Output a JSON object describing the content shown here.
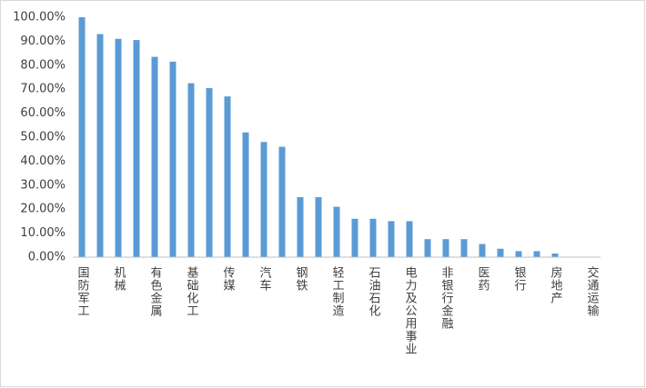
{
  "chart_data": {
    "type": "bar",
    "categories": [
      "国防军工",
      null,
      "机械",
      null,
      "有色金属",
      null,
      "基础化工",
      null,
      "传媒",
      null,
      "汽车",
      null,
      "钢铁",
      null,
      "轻工制造",
      null,
      "石油石化",
      null,
      "电力及公用事业",
      null,
      "非银行金融",
      null,
      "医药",
      null,
      "银行",
      null,
      "房地产",
      null,
      "交通运输"
    ],
    "values": [
      100,
      93,
      91,
      90.5,
      83.5,
      81.5,
      72.5,
      70.5,
      67,
      52,
      48,
      46,
      25,
      25,
      21,
      16,
      16,
      15,
      15,
      7.5,
      7.5,
      7.5,
      5.5,
      3.5,
      2.5,
      2.5,
      1.5,
      0,
      0
    ],
    "color": "#5b9bd5",
    "ylim": [
      0,
      100
    ],
    "yticks": [
      {
        "value": 0,
        "label": "0.00%"
      },
      {
        "value": 10,
        "label": "10.00%"
      },
      {
        "value": 20,
        "label": "20.00%"
      },
      {
        "value": 30,
        "label": "30.00%"
      },
      {
        "value": 40,
        "label": "40.00%"
      },
      {
        "value": 50,
        "label": "50.00%"
      },
      {
        "value": 60,
        "label": "60.00%"
      },
      {
        "value": 70,
        "label": "70.00%"
      },
      {
        "value": 80,
        "label": "80.00%"
      },
      {
        "value": 90,
        "label": "90.00%"
      },
      {
        "value": 100,
        "label": "100.00%"
      }
    ],
    "grid": false
  }
}
